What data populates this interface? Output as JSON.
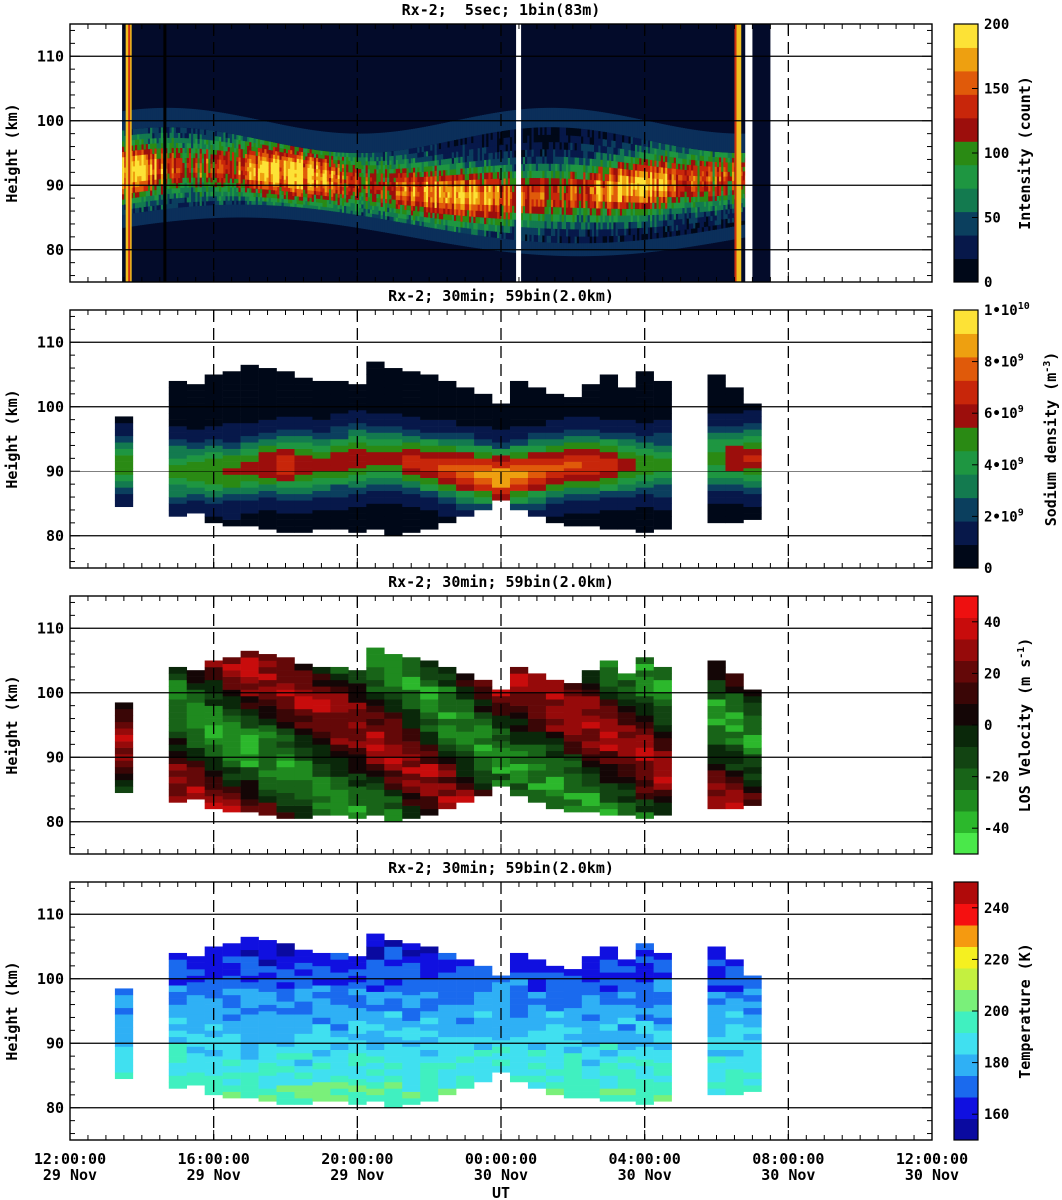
{
  "chart_data": {
    "type": "heatmap",
    "xlabel": "UT",
    "x_ticks": [
      {
        "hours": 0,
        "time": "12:00:00",
        "date": "29 Nov"
      },
      {
        "hours": 4,
        "time": "16:00:00",
        "date": "29 Nov"
      },
      {
        "hours": 8,
        "time": "20:00:00",
        "date": "29 Nov"
      },
      {
        "hours": 12,
        "time": "00:00:00",
        "date": "30 Nov"
      },
      {
        "hours": 16,
        "time": "04:00:00",
        "date": "30 Nov"
      },
      {
        "hours": 20,
        "time": "08:00:00",
        "date": "30 Nov"
      },
      {
        "hours": 24,
        "time": "12:00:00",
        "date": "30 Nov"
      }
    ],
    "xlim_hours": [
      0,
      24
    ],
    "ylim_km": [
      75,
      115
    ],
    "y_ticks": [
      80,
      90,
      100,
      110
    ],
    "panels": [
      {
        "title": "Rx-2;  5sec; 1bin(83m)",
        "ylabel": "Height (km)",
        "variable": "intensity",
        "colorbar": {
          "label": "Intensity (count)",
          "range": [
            0,
            200
          ],
          "ticks": [
            0,
            50,
            100,
            150,
            200
          ],
          "tick_labels": [
            "0",
            "50",
            "100",
            "150",
            "200"
          ],
          "colors": [
            "#000818",
            "#07184a",
            "#0b3f5e",
            "#137a4f",
            "#1e9641",
            "#2a8a14",
            "#9c0e0c",
            "#c8260a",
            "#e05a0a",
            "#eea010",
            "#fde236"
          ]
        },
        "data_start_hours": 1.8,
        "data_end_hours": 19.0,
        "layer_description": "sodium layer between ~82 and ~98 km"
      },
      {
        "title": "Rx-2; 30min; 59bin(2.0km)",
        "ylabel": "Height (km)",
        "variable": "sodium_density",
        "colorbar": {
          "label": "Sodium density (m^-3)",
          "range": [
            0,
            10000000000.0
          ],
          "ticks": [
            0,
            2000000000.0,
            4000000000.0,
            6000000000.0,
            8000000000.0,
            10000000000.0
          ],
          "tick_labels": [
            "0",
            "2•10^9",
            "4•10^9",
            "6•10^9",
            "8•10^9",
            "1•10^10"
          ],
          "colors": [
            "#000818",
            "#07184a",
            "#0b3f5e",
            "#137a4f",
            "#1e9641",
            "#2a8a14",
            "#9c0e0c",
            "#c8260a",
            "#e05a0a",
            "#eea010",
            "#fde236"
          ]
        }
      },
      {
        "title": "Rx-2; 30min; 59bin(2.0km)",
        "ylabel": "Height (km)",
        "variable": "los_velocity",
        "colorbar": {
          "label": "LOS Velocity (m s^-1)",
          "range": [
            -50,
            50
          ],
          "ticks": [
            -40,
            -20,
            0,
            20,
            40
          ],
          "tick_labels": [
            "-40",
            "-20",
            "0",
            "20",
            "40"
          ],
          "colors": [
            "#4ae84a",
            "#2cb82c",
            "#1f8a1f",
            "#186418",
            "#124412",
            "#0a280a",
            "#140606",
            "#3a0606",
            "#640808",
            "#960a0a",
            "#c80c0c",
            "#ee1010"
          ]
        }
      },
      {
        "title": "Rx-2; 30min; 59bin(2.0km)",
        "ylabel": "Height (km)",
        "variable": "temperature",
        "colorbar": {
          "label": "Temperature (K)",
          "range": [
            150,
            250
          ],
          "ticks": [
            160,
            180,
            200,
            220,
            240
          ],
          "tick_labels": [
            "160",
            "180",
            "200",
            "220",
            "240"
          ],
          "colors": [
            "#0a0aa0",
            "#1010e0",
            "#1a6aee",
            "#2fb0f5",
            "#40e0f0",
            "#40f0c0",
            "#7af07a",
            "#c4f040",
            "#f5f020",
            "#f59a10",
            "#f51010",
            "#b00a0a"
          ]
        }
      }
    ],
    "profiles_30min": {
      "columns_hours": [
        1.5,
        3.0,
        3.5,
        4.0,
        4.5,
        5.0,
        5.5,
        6.0,
        6.5,
        7.0,
        7.5,
        8.0,
        8.5,
        9.0,
        9.5,
        10.0,
        10.5,
        11.0,
        11.5,
        12.0,
        12.5,
        13.0,
        13.5,
        14.0,
        14.5,
        15.0,
        15.5,
        16.0,
        16.5,
        18.0,
        18.5,
        19.0
      ],
      "bottom_km": [
        84.5,
        83,
        83.5,
        82,
        81.5,
        81.5,
        81,
        80.5,
        80.5,
        81,
        81,
        80.5,
        81,
        80,
        80.5,
        81,
        82,
        83,
        84,
        85.5,
        84,
        83,
        82,
        81.5,
        81.5,
        81,
        81,
        80.5,
        81,
        82,
        82,
        82.5
      ],
      "top_km": [
        98.5,
        103.5,
        103.5,
        104.5,
        105,
        106,
        106,
        105,
        104,
        104,
        103.5,
        103.5,
        107,
        106,
        105.5,
        105,
        104,
        103,
        101.5,
        100.5,
        103.5,
        103,
        102,
        101.5,
        103,
        105,
        103,
        105.5,
        104,
        104.5,
        102.5,
        100.5
      ],
      "peak_km": [
        91,
        90,
        90,
        90,
        90,
        90.5,
        91,
        91,
        91,
        91,
        91.5,
        92,
        92,
        92,
        91.5,
        91,
        90.5,
        90,
        89.5,
        89,
        89.5,
        90,
        90.5,
        91,
        91,
        91,
        91,
        91,
        91,
        92,
        92,
        92
      ],
      "peak_density_1e9": [
        4.5,
        4.3,
        4.6,
        4.8,
        5.0,
        5.2,
        5.8,
        6.1,
        5.5,
        5.0,
        5.2,
        5.6,
        5.0,
        5.4,
        6.0,
        6.4,
        6.8,
        7.2,
        7.8,
        8.2,
        7.9,
        7.2,
        7.0,
        6.8,
        6.6,
        6.2,
        5.2,
        4.6,
        4.2,
        4.4,
        5.6,
        6.0
      ]
    }
  }
}
